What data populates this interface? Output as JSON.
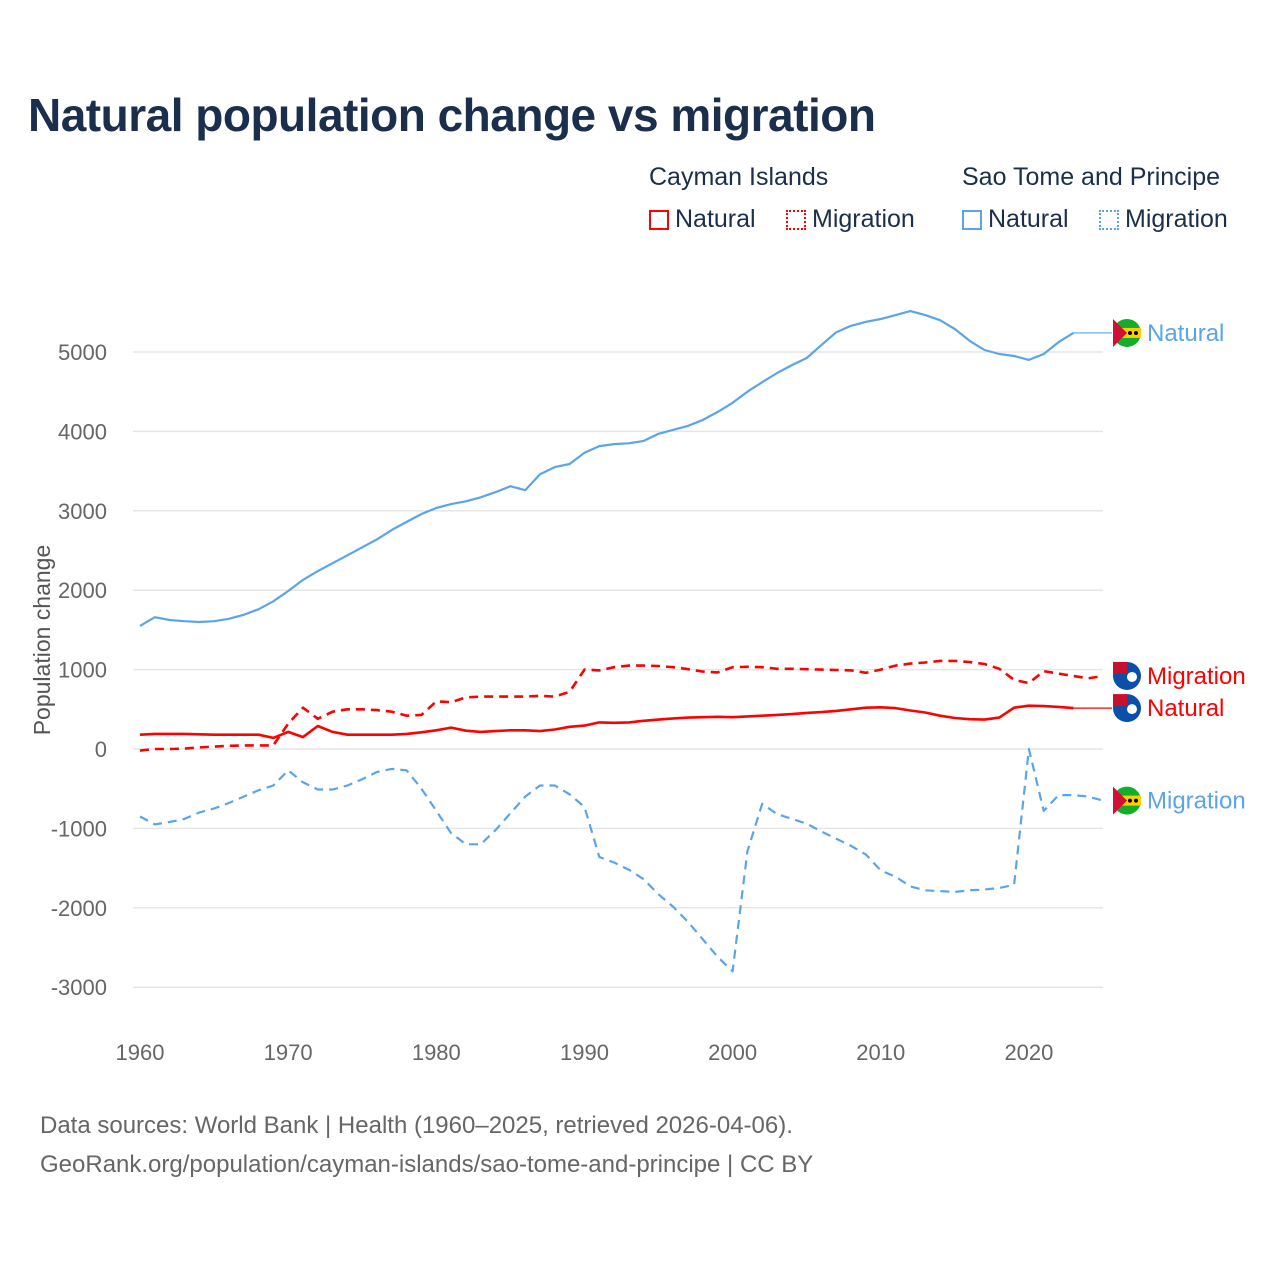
{
  "title": "Natural population change vs migration",
  "legend": {
    "groups": [
      {
        "name": "Cayman Islands",
        "color": "#ff0000",
        "items": [
          "Natural",
          "Migration"
        ]
      },
      {
        "name": "Sao Tome and Principe",
        "color": "#5ba4ea",
        "items": [
          "Natural",
          "Migration"
        ]
      }
    ]
  },
  "footer": {
    "line1": "Data sources: World Bank | Health (1960–2025, retrieved 2026-04-06).",
    "line2": "GeoRank.org/population/cayman-islands/sao-tome-and-principe | CC BY"
  },
  "chart_data": {
    "type": "line",
    "title": "Natural population change vs migration",
    "xlabel": "",
    "ylabel": "Population change",
    "xlim": [
      1960,
      2025
    ],
    "ylim": [
      -3000,
      5500
    ],
    "xticks": [
      1960,
      1970,
      1980,
      1990,
      2000,
      2010,
      2020
    ],
    "yticks": [
      -3000,
      -2000,
      -1000,
      0,
      1000,
      2000,
      3000,
      4000,
      5000
    ],
    "grid": true,
    "legend_position": "top-right",
    "series": [
      {
        "name": "Sao Tome and Principe Natural",
        "label": "Natural",
        "color": "#5ba4ea",
        "dash": false,
        "start": 1960,
        "values": [
          1550,
          1660,
          1625,
          1610,
          1600,
          1610,
          1640,
          1690,
          1760,
          1860,
          1990,
          2130,
          2240,
          2340,
          2440,
          2540,
          2640,
          2760,
          2860,
          2960,
          3035,
          3085,
          3120,
          3170,
          3235,
          3310,
          3260,
          3460,
          3550,
          3590,
          3730,
          3815,
          3840,
          3850,
          3880,
          3970,
          4020,
          4070,
          4145,
          4245,
          4360,
          4500,
          4620,
          4735,
          4835,
          4925,
          5090,
          5250,
          5330,
          5380,
          5415,
          5465,
          5515,
          5465,
          5400,
          5290,
          5140,
          5025,
          4975,
          4950,
          4900,
          4975,
          5125,
          5240
        ]
      },
      {
        "name": "Sao Tome and Principe Migration",
        "label": "Migration",
        "color": "#5ba4ea",
        "dash": true,
        "start": 1960,
        "values": [
          -850,
          -950,
          -920,
          -880,
          -800,
          -750,
          -680,
          -600,
          -520,
          -460,
          -270,
          -420,
          -510,
          -510,
          -460,
          -380,
          -290,
          -250,
          -270,
          -500,
          -780,
          -1060,
          -1200,
          -1200,
          -1020,
          -810,
          -600,
          -460,
          -460,
          -570,
          -730,
          -1360,
          -1430,
          -1520,
          -1640,
          -1830,
          -1990,
          -2180,
          -2400,
          -2620,
          -2800,
          -1290,
          -690,
          -820,
          -880,
          -940,
          -1040,
          -1130,
          -1220,
          -1330,
          -1530,
          -1610,
          -1730,
          -1780,
          -1790,
          -1800,
          -1780,
          -1770,
          -1750,
          -1710,
          0,
          -780,
          -580,
          -580,
          -600,
          -650
        ]
      },
      {
        "name": "Cayman Islands Natural",
        "label": "Natural",
        "color": "#ff0000",
        "dash": false,
        "start": 1960,
        "values": [
          180,
          190,
          190,
          190,
          185,
          180,
          180,
          180,
          180,
          140,
          215,
          150,
          290,
          215,
          180,
          180,
          180,
          180,
          190,
          210,
          236,
          270,
          230,
          215,
          225,
          235,
          235,
          225,
          245,
          280,
          295,
          335,
          330,
          335,
          355,
          370,
          385,
          395,
          400,
          405,
          400,
          410,
          420,
          430,
          440,
          455,
          465,
          480,
          500,
          520,
          525,
          515,
          485,
          460,
          420,
          390,
          375,
          370,
          395,
          520,
          545,
          540,
          530,
          515
        ]
      },
      {
        "name": "Cayman Islands Migration",
        "label": "Migration",
        "color": "#ff0000",
        "dash": true,
        "start": 1960,
        "values": [
          -20,
          0,
          0,
          5,
          20,
          30,
          40,
          45,
          45,
          45,
          320,
          520,
          380,
          470,
          500,
          500,
          490,
          470,
          420,
          430,
          600,
          590,
          650,
          660,
          660,
          660,
          660,
          670,
          660,
          720,
          1000,
          990,
          1030,
          1050,
          1050,
          1045,
          1030,
          1005,
          975,
          965,
          1030,
          1035,
          1030,
          1010,
          1010,
          1005,
          1000,
          995,
          990,
          960,
          1000,
          1050,
          1075,
          1090,
          1110,
          1110,
          1095,
          1070,
          1010,
          870,
          830,
          980,
          950,
          920,
          890,
          920
        ]
      }
    ]
  }
}
